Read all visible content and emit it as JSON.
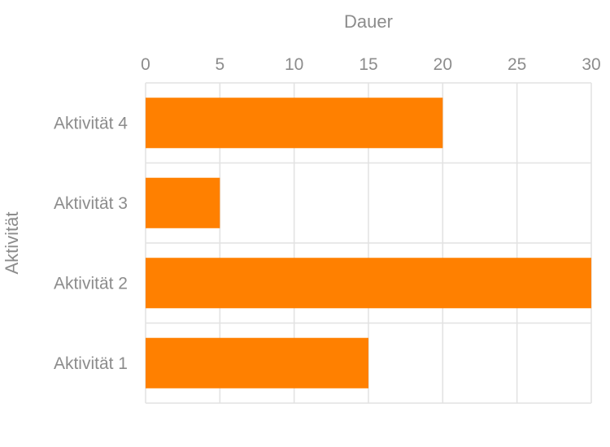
{
  "chart_data": {
    "type": "bar",
    "orientation": "horizontal",
    "categories": [
      "Aktivität 1",
      "Aktivität 2",
      "Aktivität 3",
      "Aktivität 4"
    ],
    "values": [
      15,
      30,
      5,
      20
    ],
    "xlabel": "Dauer",
    "ylabel": "Aktivität",
    "xlim": [
      0,
      30
    ],
    "xticks": [
      "0",
      "5",
      "10",
      "15",
      "20",
      "25",
      "30"
    ],
    "x_axis_position": "top",
    "grid": true,
    "legend": "none",
    "bar_color": "#ff8000",
    "grid_color": "#e2e2e2",
    "text_color": "#8c8c8c"
  }
}
